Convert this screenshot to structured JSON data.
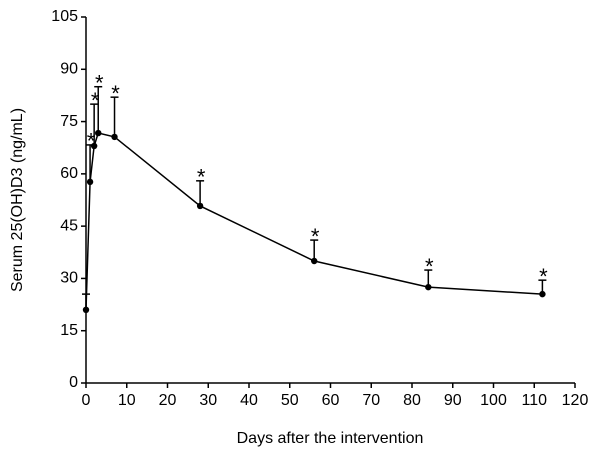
{
  "chart_data": {
    "type": "line",
    "xlabel": "Days after the intervention",
    "ylabel": "Serum 25(OH)D3 (ng/mL)",
    "x": [
      0,
      1,
      2,
      3,
      7,
      28,
      56,
      84,
      112
    ],
    "series": [
      {
        "color": "#000000",
        "values": [
          21,
          57.7,
          68,
          71.7,
          70.6,
          50.8,
          35,
          27.5,
          25.5
        ],
        "errors": [
          4.5,
          10.6,
          12,
          13.3,
          11.4,
          7.2,
          6,
          4.9,
          4
        ]
      }
    ],
    "annotations": [
      {
        "x": 1,
        "text": "*"
      },
      {
        "x": 2,
        "text": "*"
      },
      {
        "x": 3,
        "text": "*"
      },
      {
        "x": 7,
        "text": "*"
      },
      {
        "x": 28,
        "text": "*"
      },
      {
        "x": 56,
        "text": "*"
      },
      {
        "x": 84,
        "text": "*"
      },
      {
        "x": 112,
        "text": "*"
      }
    ],
    "xlim": [
      0,
      120
    ],
    "ylim": [
      0,
      105
    ],
    "xticks": [
      0,
      10,
      20,
      30,
      40,
      50,
      60,
      70,
      80,
      90,
      100,
      110,
      120
    ],
    "yticks": [
      0,
      15,
      30,
      45,
      60,
      75,
      90,
      105
    ]
  }
}
